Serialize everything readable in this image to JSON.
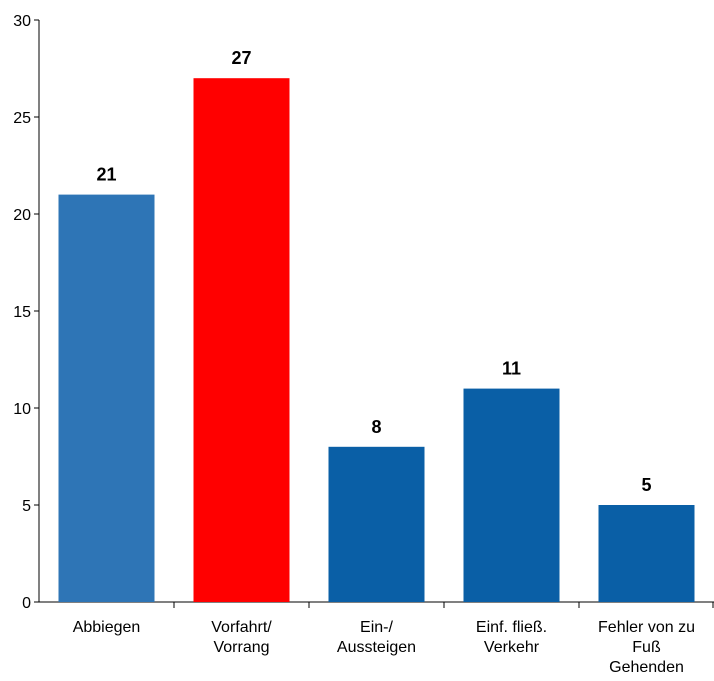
{
  "chart_data": {
    "type": "bar",
    "categories": [
      [
        "Abbiegen"
      ],
      [
        "Vorfahrt/",
        "Vorrang"
      ],
      [
        "Ein-/",
        "Aussteigen"
      ],
      [
        "Einf. fließ.",
        "Verkehr"
      ],
      [
        "Fehler von zu",
        "Fuß",
        "Gehenden"
      ]
    ],
    "values": [
      21,
      27,
      8,
      11,
      5
    ],
    "bar_colors": [
      "#2e75b6",
      "#ff0000",
      "#0a5fa6",
      "#0a5fa6",
      "#0a5fa6"
    ],
    "ylim": [
      0,
      30
    ],
    "yticks": [
      0,
      5,
      10,
      15,
      20,
      25,
      30
    ],
    "data_labels": [
      "21",
      "27",
      "8",
      "11",
      "5"
    ],
    "grid": false,
    "legend": "none"
  }
}
